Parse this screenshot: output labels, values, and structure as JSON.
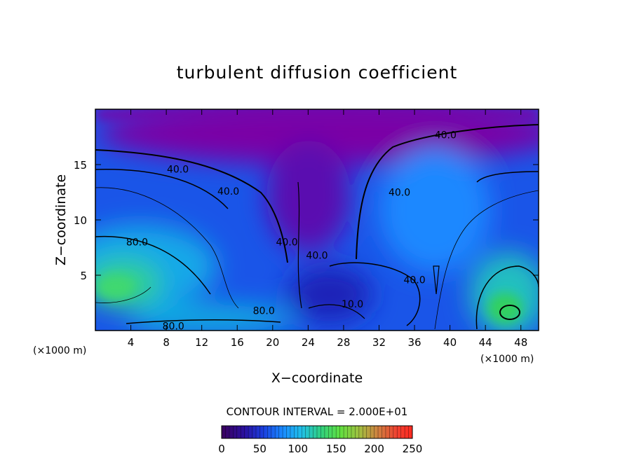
{
  "chart_data": {
    "type": "heatmap",
    "title": "turbulent diffusion coefficient",
    "xlabel": "X−coordinate",
    "ylabel": "Z−coordinate",
    "x_unit_left": "(×1000 m)",
    "x_unit_right": "(×1000 m)",
    "xlim": [
      0,
      50
    ],
    "ylim": [
      0,
      20
    ],
    "x_ticks": [
      4,
      8,
      12,
      16,
      20,
      24,
      28,
      32,
      36,
      40,
      44,
      48
    ],
    "y_ticks": [
      5,
      10,
      15
    ],
    "contour_interval_text": "CONTOUR INTERVAL = 2.000E+01",
    "colorbar": {
      "min": 0,
      "max": 250,
      "ticks": [
        0,
        50,
        100,
        150,
        200,
        250
      ],
      "colors": [
        "#3a005e",
        "#6a00a8",
        "#1a1ad0",
        "#0066ff",
        "#00b0ff",
        "#20d0b0",
        "#40e060",
        "#90e040",
        "#c0b040",
        "#e06030",
        "#ff3020"
      ]
    },
    "contour_labels": [
      {
        "text": "40.0",
        "x": 9.3,
        "z": 14.6
      },
      {
        "text": "40.0",
        "x": 15.0,
        "z": 12.6
      },
      {
        "text": "40.0",
        "x": 21.6,
        "z": 8.0
      },
      {
        "text": "40.0",
        "x": 25.0,
        "z": 6.8
      },
      {
        "text": "40.0",
        "x": 39.5,
        "z": 17.7
      },
      {
        "text": "40.0",
        "x": 34.3,
        "z": 12.5
      },
      {
        "text": "40.0",
        "x": 36.0,
        "z": 4.6
      },
      {
        "text": "10.0",
        "x": 29.0,
        "z": 2.4
      },
      {
        "text": "80.0",
        "x": 4.7,
        "z": 8.0
      },
      {
        "text": "80.0",
        "x": 19.0,
        "z": 1.8
      },
      {
        "text": "80.0",
        "x": 8.8,
        "z": 0.4
      }
    ]
  }
}
